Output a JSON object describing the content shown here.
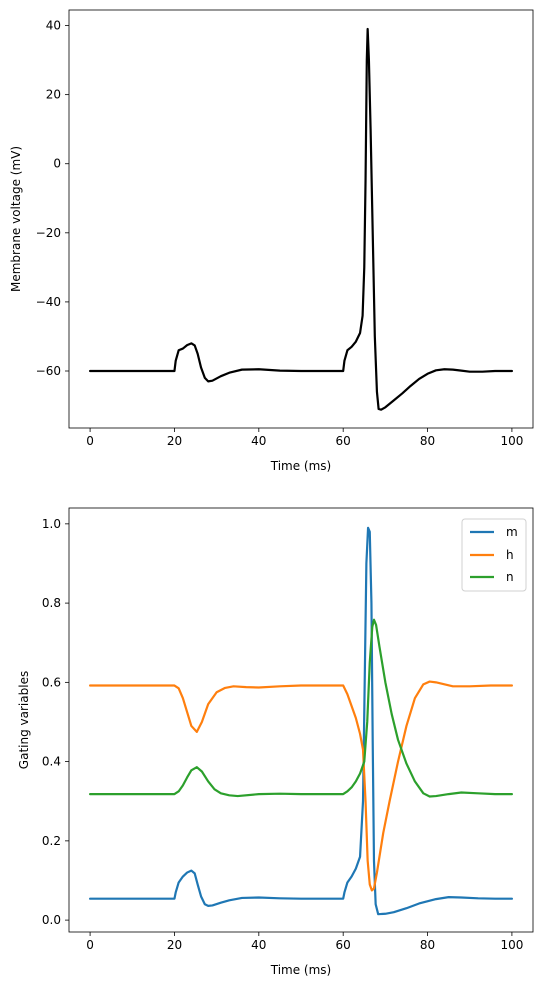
{
  "chart_data": [
    {
      "type": "line",
      "xlabel": "Time (ms)",
      "ylabel": "Membrane voltage (mV)",
      "xlim": [
        -5,
        105
      ],
      "ylim": [
        -76.5,
        44.5
      ],
      "xticks": [
        0,
        20,
        40,
        60,
        80,
        100
      ],
      "yticks": [
        -60,
        -40,
        -20,
        0,
        20,
        40
      ],
      "grid": false,
      "series": [
        {
          "color": "#000000",
          "points": [
            [
              0,
              -60
            ],
            [
              20,
              -60
            ],
            [
              20.3,
              -57
            ],
            [
              21,
              -54
            ],
            [
              22,
              -53.5
            ],
            [
              23,
              -52.5
            ],
            [
              24,
              -52
            ],
            [
              24.8,
              -52.6
            ],
            [
              25.5,
              -55
            ],
            [
              26.3,
              -59
            ],
            [
              27.2,
              -62
            ],
            [
              28,
              -63
            ],
            [
              29,
              -62.8
            ],
            [
              31,
              -61.5
            ],
            [
              33,
              -60.5
            ],
            [
              36,
              -59.6
            ],
            [
              40,
              -59.5
            ],
            [
              45,
              -59.9
            ],
            [
              50,
              -60
            ],
            [
              60,
              -60
            ],
            [
              60.3,
              -57
            ],
            [
              61,
              -54
            ],
            [
              62,
              -53
            ],
            [
              63,
              -51.5
            ],
            [
              64,
              -49
            ],
            [
              64.6,
              -44
            ],
            [
              65,
              -30
            ],
            [
              65.3,
              -5
            ],
            [
              65.6,
              30
            ],
            [
              65.8,
              39
            ],
            [
              66.1,
              30
            ],
            [
              66.5,
              10
            ],
            [
              67,
              -20
            ],
            [
              67.5,
              -50
            ],
            [
              68,
              -66
            ],
            [
              68.4,
              -71
            ],
            [
              69,
              -71.2
            ],
            [
              70,
              -70.5
            ],
            [
              72,
              -68.5
            ],
            [
              74,
              -66.5
            ],
            [
              76,
              -64.3
            ],
            [
              78,
              -62.3
            ],
            [
              80,
              -60.8
            ],
            [
              82,
              -59.8
            ],
            [
              84,
              -59.5
            ],
            [
              86,
              -59.6
            ],
            [
              88,
              -59.9
            ],
            [
              90,
              -60.2
            ],
            [
              93,
              -60.2
            ],
            [
              96,
              -60
            ],
            [
              100,
              -60
            ]
          ]
        }
      ]
    },
    {
      "type": "line",
      "xlabel": "Time (ms)",
      "ylabel": "Gating variables",
      "xlim": [
        -5,
        105
      ],
      "ylim": [
        -0.03,
        1.04
      ],
      "xticks": [
        0,
        20,
        40,
        60,
        80,
        100
      ],
      "yticks": [
        0.0,
        0.2,
        0.4,
        0.6,
        0.8,
        1.0
      ],
      "ytick_labels": [
        "0.0",
        "0.2",
        "0.4",
        "0.6",
        "0.8",
        "1.0"
      ],
      "grid": false,
      "legend": "top-right",
      "series": [
        {
          "name": "m",
          "color": "#1f77b4",
          "points": [
            [
              0,
              0.054
            ],
            [
              20,
              0.054
            ],
            [
              20.3,
              0.07
            ],
            [
              21,
              0.095
            ],
            [
              22,
              0.11
            ],
            [
              23,
              0.12
            ],
            [
              24,
              0.125
            ],
            [
              24.8,
              0.118
            ],
            [
              25.5,
              0.09
            ],
            [
              26.3,
              0.06
            ],
            [
              27.2,
              0.04
            ],
            [
              28,
              0.036
            ],
            [
              29,
              0.037
            ],
            [
              31,
              0.044
            ],
            [
              33,
              0.05
            ],
            [
              36,
              0.056
            ],
            [
              40,
              0.057
            ],
            [
              45,
              0.055
            ],
            [
              50,
              0.054
            ],
            [
              60,
              0.054
            ],
            [
              60.3,
              0.07
            ],
            [
              61,
              0.095
            ],
            [
              62,
              0.11
            ],
            [
              63,
              0.13
            ],
            [
              64,
              0.16
            ],
            [
              64.7,
              0.3
            ],
            [
              65.1,
              0.6
            ],
            [
              65.5,
              0.9
            ],
            [
              65.9,
              0.99
            ],
            [
              66.3,
              0.98
            ],
            [
              66.7,
              0.8
            ],
            [
              67,
              0.45
            ],
            [
              67.3,
              0.15
            ],
            [
              67.7,
              0.04
            ],
            [
              68.3,
              0.015
            ],
            [
              70,
              0.016
            ],
            [
              72,
              0.02
            ],
            [
              75,
              0.03
            ],
            [
              78,
              0.042
            ],
            [
              82,
              0.053
            ],
            [
              85,
              0.058
            ],
            [
              88,
              0.057
            ],
            [
              92,
              0.055
            ],
            [
              96,
              0.054
            ],
            [
              100,
              0.054
            ]
          ]
        },
        {
          "name": "h",
          "color": "#ff7f0e",
          "points": [
            [
              0,
              0.592
            ],
            [
              20,
              0.592
            ],
            [
              21,
              0.585
            ],
            [
              22,
              0.56
            ],
            [
              23,
              0.525
            ],
            [
              24,
              0.49
            ],
            [
              25.3,
              0.475
            ],
            [
              26.5,
              0.5
            ],
            [
              28,
              0.545
            ],
            [
              30,
              0.575
            ],
            [
              32,
              0.586
            ],
            [
              34,
              0.59
            ],
            [
              37,
              0.588
            ],
            [
              40,
              0.587
            ],
            [
              45,
              0.59
            ],
            [
              50,
              0.592
            ],
            [
              60,
              0.592
            ],
            [
              61,
              0.57
            ],
            [
              62,
              0.54
            ],
            [
              63,
              0.51
            ],
            [
              64,
              0.47
            ],
            [
              64.7,
              0.43
            ],
            [
              65.3,
              0.3
            ],
            [
              65.8,
              0.15
            ],
            [
              66.3,
              0.09
            ],
            [
              66.8,
              0.075
            ],
            [
              67.3,
              0.08
            ],
            [
              68,
              0.12
            ],
            [
              69.5,
              0.22
            ],
            [
              71,
              0.3
            ],
            [
              73,
              0.4
            ],
            [
              75,
              0.49
            ],
            [
              77,
              0.56
            ],
            [
              79,
              0.595
            ],
            [
              80.5,
              0.602
            ],
            [
              82,
              0.6
            ],
            [
              84,
              0.595
            ],
            [
              86,
              0.59
            ],
            [
              90,
              0.59
            ],
            [
              95,
              0.592
            ],
            [
              100,
              0.592
            ]
          ]
        },
        {
          "name": "n",
          "color": "#2ca02c",
          "points": [
            [
              0,
              0.318
            ],
            [
              20,
              0.318
            ],
            [
              21,
              0.325
            ],
            [
              22,
              0.34
            ],
            [
              23,
              0.36
            ],
            [
              24,
              0.378
            ],
            [
              25.3,
              0.386
            ],
            [
              26.5,
              0.375
            ],
            [
              28,
              0.35
            ],
            [
              29.5,
              0.33
            ],
            [
              31,
              0.32
            ],
            [
              33,
              0.315
            ],
            [
              35,
              0.313
            ],
            [
              40,
              0.318
            ],
            [
              45,
              0.319
            ],
            [
              50,
              0.318
            ],
            [
              60,
              0.318
            ],
            [
              61,
              0.325
            ],
            [
              62,
              0.335
            ],
            [
              63,
              0.35
            ],
            [
              64,
              0.37
            ],
            [
              65,
              0.4
            ],
            [
              65.7,
              0.5
            ],
            [
              66.3,
              0.65
            ],
            [
              66.9,
              0.74
            ],
            [
              67.3,
              0.758
            ],
            [
              67.8,
              0.745
            ],
            [
              68.6,
              0.69
            ],
            [
              70,
              0.6
            ],
            [
              71.5,
              0.52
            ],
            [
              73,
              0.455
            ],
            [
              75,
              0.395
            ],
            [
              77,
              0.35
            ],
            [
              79,
              0.32
            ],
            [
              80.5,
              0.312
            ],
            [
              82,
              0.313
            ],
            [
              85,
              0.318
            ],
            [
              88,
              0.322
            ],
            [
              92,
              0.32
            ],
            [
              96,
              0.318
            ],
            [
              100,
              0.318
            ]
          ]
        }
      ]
    }
  ]
}
